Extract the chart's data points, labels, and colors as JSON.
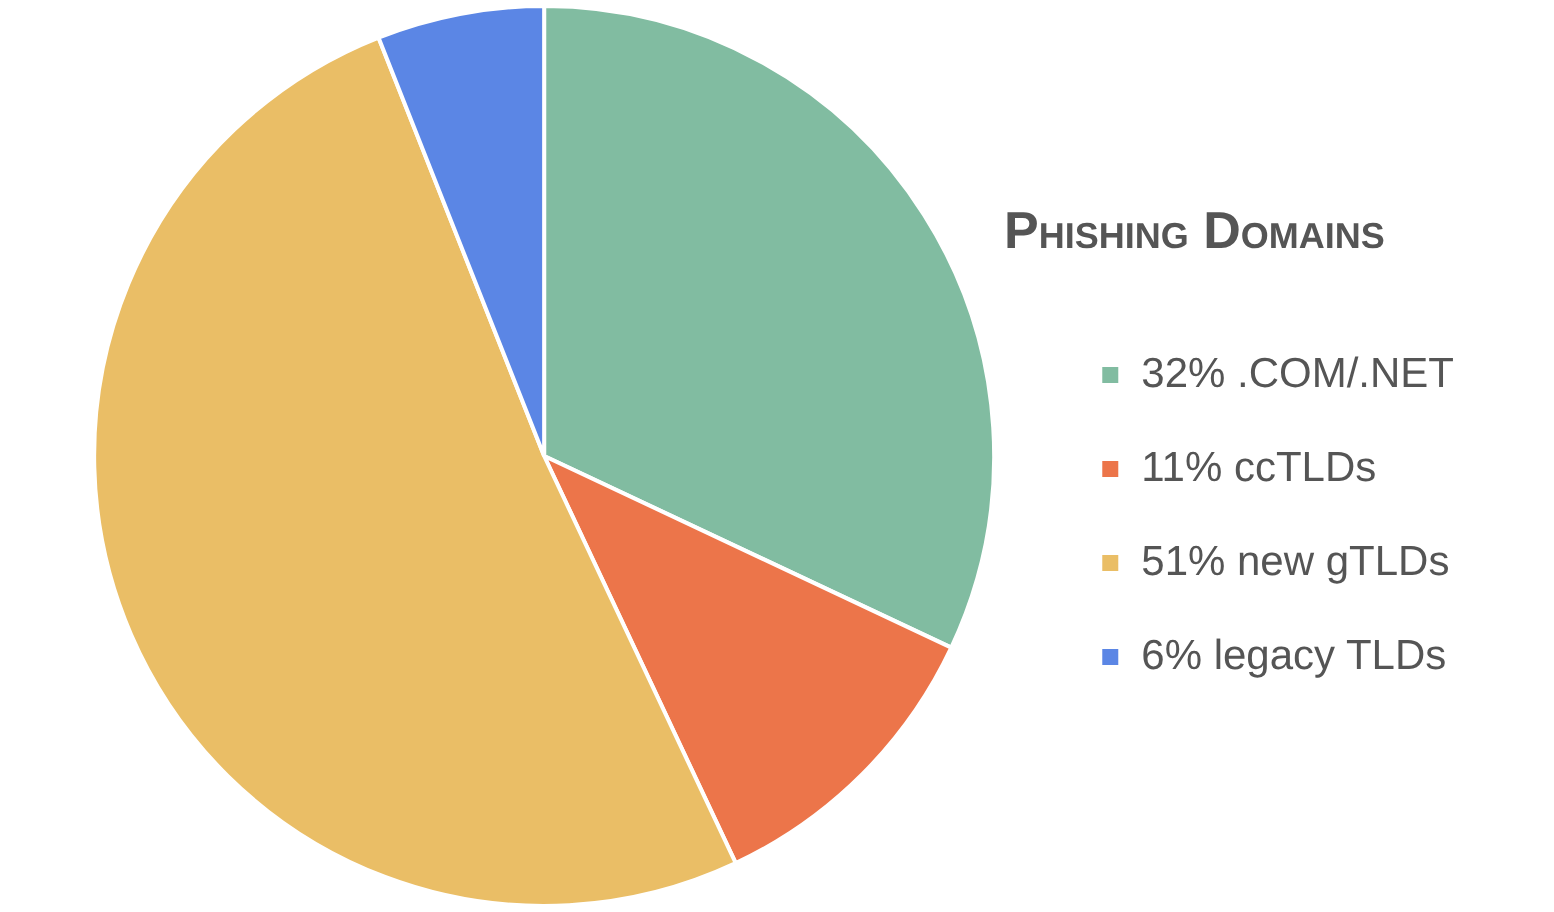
{
  "chart_data": {
    "type": "pie",
    "title": "Phishing Domains",
    "categories": [
      "32% .COM/.NET",
      "11% ccTLDs",
      "51% new gTLDs",
      "6% legacy TLDs"
    ],
    "values": [
      32,
      11,
      51,
      6
    ],
    "colors": [
      "#81bca1",
      "#ec754a",
      "#eabe66",
      "#5b86e5"
    ],
    "legend": "right"
  }
}
